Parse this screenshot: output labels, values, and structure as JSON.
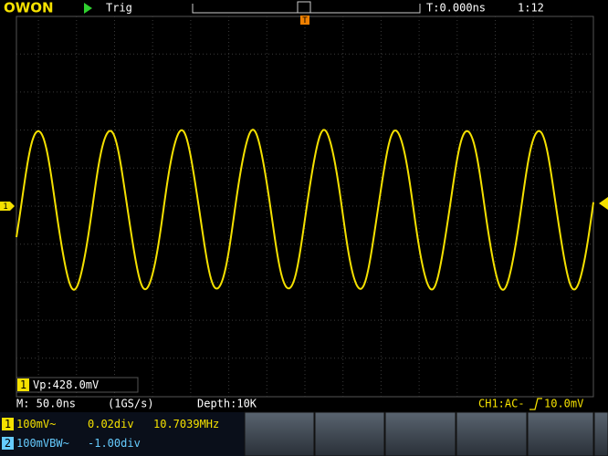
{
  "header": {
    "brand": "OWON",
    "mode": "Trig",
    "time_offset": "T:0.000ns",
    "time": "1:12"
  },
  "markers": {
    "trigger": "T",
    "channel": "1"
  },
  "measurement": {
    "channel": "1",
    "text": "Vp:428.0mV"
  },
  "status": {
    "timebase": "M: 50.0ns",
    "sample_rate": "(1GS/s)",
    "depth": "Depth:10K",
    "trigger_source": "CH1:AC-",
    "trigger_level": "10.0mV"
  },
  "channels": [
    {
      "id": "1",
      "scale": "100mV~",
      "offset": "0.02div",
      "frequency": "10.7039MHz"
    },
    {
      "id": "2",
      "scale": "100mVBW~",
      "offset": "-1.00div"
    }
  ]
}
